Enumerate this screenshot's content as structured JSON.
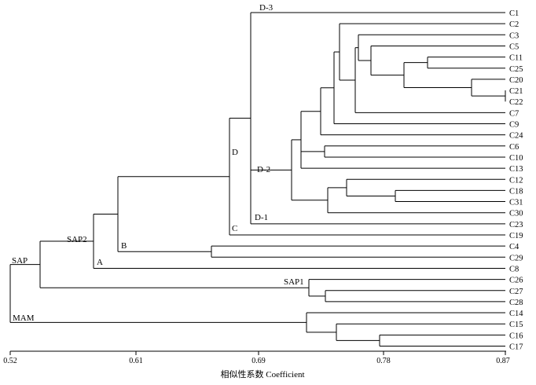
{
  "leaves": [
    "C1",
    "C2",
    "C3",
    "C5",
    "C11",
    "C25",
    "C20",
    "C21",
    "C22",
    "C7",
    "C9",
    "C24",
    "C6",
    "C10",
    "C13",
    "C12",
    "C18",
    "C31",
    "C30",
    "C23",
    "C19",
    "C4",
    "C29",
    "C8",
    "C26",
    "C27",
    "C28",
    "C14",
    "C15",
    "C16",
    "C17"
  ],
  "group_labels": [
    "D-3",
    "D-2",
    "D-1",
    "D",
    "C",
    "B",
    "A",
    "SAP2",
    "SAP",
    "SAP1",
    "MAM"
  ],
  "axis": {
    "ticks": [
      "0.52",
      "0.61",
      "0.69",
      "0.78",
      "0.87"
    ],
    "title": "相似性系数 Coefficient"
  }
}
